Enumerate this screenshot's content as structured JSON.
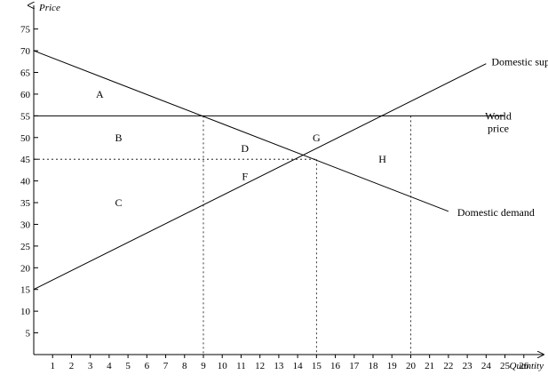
{
  "chart_data": {
    "type": "line",
    "xlabel": "Quantity",
    "ylabel": "Price",
    "xlim": [
      0,
      27
    ],
    "ylim": [
      0,
      78
    ],
    "x_ticks": [
      1,
      2,
      3,
      4,
      5,
      6,
      7,
      8,
      9,
      10,
      11,
      12,
      13,
      14,
      15,
      16,
      17,
      18,
      19,
      20,
      21,
      22,
      23,
      24,
      25,
      26
    ],
    "y_ticks": [
      5,
      10,
      15,
      20,
      25,
      30,
      35,
      40,
      45,
      50,
      55,
      60,
      65,
      70,
      75
    ],
    "grid": false,
    "series": [
      {
        "name": "Domestic supply",
        "x": [
          0,
          24
        ],
        "y": [
          15,
          67
        ]
      },
      {
        "name": "Domestic demand",
        "x": [
          0,
          22
        ],
        "y": [
          70,
          33
        ]
      }
    ],
    "world_price_line": {
      "label_line1": "World",
      "label_line2": "price",
      "value": 55,
      "x": [
        0,
        25
      ]
    },
    "reference_price": {
      "value": 45,
      "x_start": 0,
      "x_end": 15
    },
    "reference_quantities": [
      {
        "x": 9,
        "y_top": 55
      },
      {
        "x": 15,
        "y_top": 45
      },
      {
        "x": 20,
        "y_top": 55
      }
    ],
    "region_labels": [
      {
        "text": "A",
        "x": 3.5,
        "y": 60
      },
      {
        "text": "B",
        "x": 4.5,
        "y": 50
      },
      {
        "text": "C",
        "x": 4.5,
        "y": 35
      },
      {
        "text": "D",
        "x": 11.2,
        "y": 47.5
      },
      {
        "text": "F",
        "x": 11.2,
        "y": 41
      },
      {
        "text": "G",
        "x": 15,
        "y": 50
      },
      {
        "text": "H",
        "x": 18.5,
        "y": 45
      }
    ]
  }
}
